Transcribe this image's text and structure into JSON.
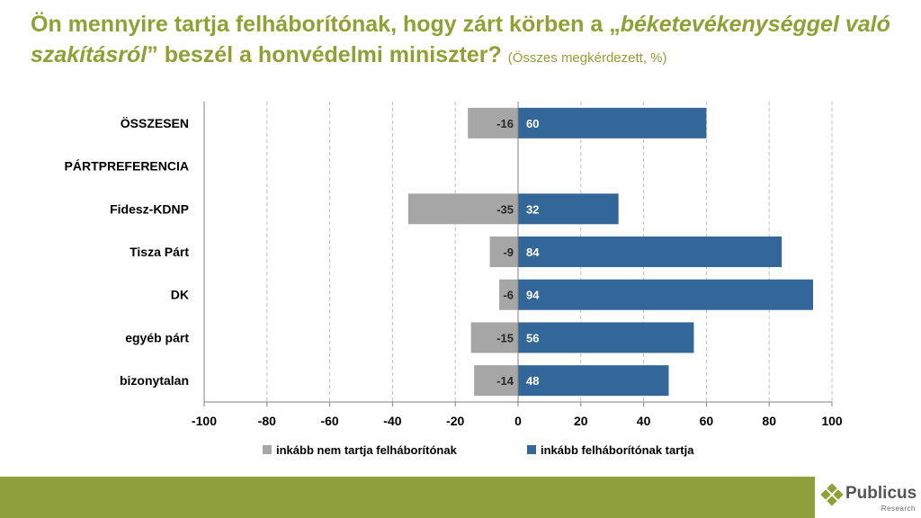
{
  "title": {
    "part1": "Ön mennyire tartja felháborítónak, hogy zárt körben a „",
    "emphasis": "béketevékenységgel való szakításról",
    "part2": "” beszél a honvédelmi miniszter?",
    "subtitle": "(Összes megkérdezett, %)"
  },
  "chart_data": {
    "type": "bar",
    "orientation": "horizontal",
    "stacked": "diverging",
    "categories": [
      "ÖSSZESEN",
      "PÁRTPREFERENCIA",
      "Fidesz-KDNP",
      "Tisza Párt",
      "DK",
      "egyéb párt",
      "bizonytalan"
    ],
    "series": [
      {
        "name": "inkább nem tartja felháborítónak",
        "color": "#a6a6a6",
        "values": [
          -16,
          null,
          -35,
          -9,
          -6,
          -15,
          -14
        ]
      },
      {
        "name": "inkább felháborítónak tartja",
        "color": "#336699",
        "values": [
          60,
          null,
          32,
          84,
          94,
          56,
          48
        ]
      }
    ],
    "xlim": [
      -100,
      100
    ],
    "xticks": [
      "-100",
      "-80",
      "-60",
      "-40",
      "-20",
      "0",
      "20",
      "40",
      "60",
      "80",
      "100"
    ],
    "grid": "vertical dashed",
    "legend": "bottom"
  },
  "logo": {
    "name": "Publicus",
    "sub": "Research"
  }
}
